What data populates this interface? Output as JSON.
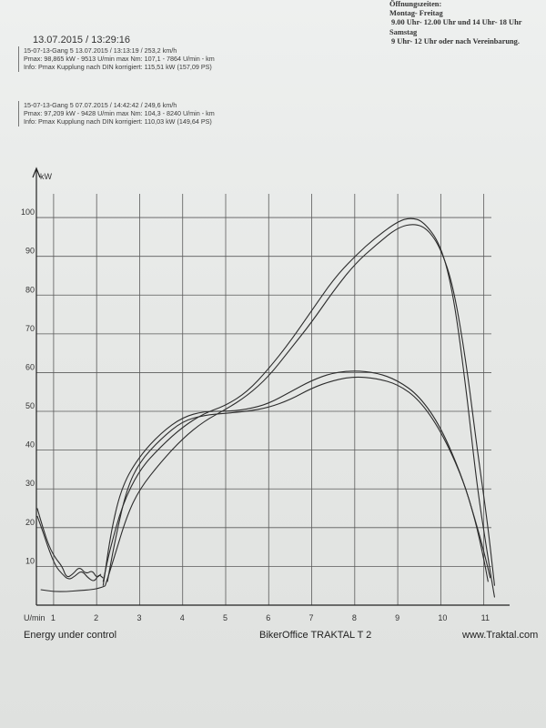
{
  "shop_hours": {
    "heading": "Öffnungszeiten:",
    "line1": "Montag- Freitag",
    "line2": "9.00 Uhr- 12.00 Uhr und 14 Uhr- 18 Uhr",
    "line3": "Samstag",
    "line4": "9 Uhr- 12 Uhr oder nach Vereinbarung."
  },
  "print_datetime": "13.07.2015  /  13:29:16",
  "runs": [
    {
      "line1": "15-07-13-Gang 5     13.07.2015   /  13:13:19  / 253,2 km/h",
      "line2": "Pmax: 98,865 kW - 9513 U/min      max Nm: 107,1 - 7864 U/min     - km",
      "line3": "Info: Pmax Kupplung nach DIN korrigiert: 115,51 kW (157,09 PS)"
    },
    {
      "line1": "15-07-13-Gang 5     07.07.2015   /  14:42:42  / 249,6 km/h",
      "line2": "Pmax: 97,209 kW - 9428 U/min      max Nm: 104,3 - 8240 U/min     - km",
      "line3": "Info: Pmax Kupplung nach DIN korrigiert: 110,03 kW (149,64 PS)"
    }
  ],
  "footer": {
    "left": "Energy  under control",
    "middle": "BikerOffice TRAKTAL  T 2",
    "right": "www.Traktal.com"
  },
  "chart_data": {
    "type": "line",
    "ylabel": "kW",
    "xlabel": "U/min",
    "x_ticks": [
      "1",
      "2",
      "3",
      "4",
      "5",
      "6",
      "7",
      "8",
      "9",
      "10",
      "11"
    ],
    "y_ticks": [
      "10",
      "20",
      "30",
      "40",
      "50",
      "60",
      "70",
      "80",
      "90",
      "100"
    ],
    "xlim": [
      0.6,
      11.6
    ],
    "ylim": [
      0,
      108
    ],
    "grid": true,
    "series": [
      {
        "values": [
          [
            2.15,
            6
          ],
          [
            2.3,
            14
          ],
          [
            2.6,
            26
          ],
          [
            3,
            35
          ],
          [
            3.5,
            41
          ],
          [
            4,
            46
          ],
          [
            4.5,
            49.5
          ],
          [
            5,
            51.5
          ],
          [
            5.5,
            55
          ],
          [
            6,
            61
          ],
          [
            6.5,
            68
          ],
          [
            7,
            76
          ],
          [
            7.5,
            84
          ],
          [
            8,
            90
          ],
          [
            8.5,
            95
          ],
          [
            9,
            99
          ],
          [
            9.3,
            100
          ],
          [
            9.6,
            99
          ],
          [
            10,
            93
          ],
          [
            10.3,
            80
          ],
          [
            10.6,
            55
          ],
          [
            10.85,
            30
          ],
          [
            11.1,
            12
          ],
          [
            11.25,
            2
          ]
        ]
      },
      {
        "values": [
          [
            2.2,
            5
          ],
          [
            2.4,
            12
          ],
          [
            2.7,
            23
          ],
          [
            3,
            30
          ],
          [
            3.5,
            37
          ],
          [
            4,
            43
          ],
          [
            4.5,
            47.5
          ],
          [
            5,
            50.5
          ],
          [
            5.5,
            54
          ],
          [
            6,
            59
          ],
          [
            6.5,
            66
          ],
          [
            7,
            73
          ],
          [
            7.5,
            81
          ],
          [
            8,
            88
          ],
          [
            8.5,
            93
          ],
          [
            9,
            97.5
          ],
          [
            9.4,
            98.5
          ],
          [
            9.7,
            97
          ],
          [
            10,
            92
          ],
          [
            10.3,
            82
          ],
          [
            10.6,
            62
          ],
          [
            10.85,
            40
          ],
          [
            11.1,
            20
          ],
          [
            11.25,
            5
          ]
        ]
      },
      {
        "values": [
          [
            2.15,
            5
          ],
          [
            2.35,
            20
          ],
          [
            2.6,
            31
          ],
          [
            3,
            38.5
          ],
          [
            3.5,
            44.5
          ],
          [
            4,
            48.5
          ],
          [
            4.5,
            50
          ],
          [
            5,
            50
          ],
          [
            5.5,
            50.5
          ],
          [
            6,
            52
          ],
          [
            6.5,
            55
          ],
          [
            7,
            58
          ],
          [
            7.5,
            60
          ],
          [
            8,
            60.5
          ],
          [
            8.5,
            60
          ],
          [
            9,
            58
          ],
          [
            9.5,
            54
          ],
          [
            10,
            46
          ],
          [
            10.5,
            33
          ],
          [
            10.8,
            22
          ],
          [
            11,
            12
          ],
          [
            11.1,
            6
          ]
        ]
      },
      {
        "values": [
          [
            2.25,
            6
          ],
          [
            2.45,
            18
          ],
          [
            2.7,
            30
          ],
          [
            3,
            37
          ],
          [
            3.5,
            43
          ],
          [
            4,
            47.5
          ],
          [
            4.5,
            49
          ],
          [
            5,
            49.5
          ],
          [
            5.5,
            50
          ],
          [
            6,
            51
          ],
          [
            6.5,
            53
          ],
          [
            7,
            56
          ],
          [
            7.5,
            58
          ],
          [
            8,
            59
          ],
          [
            8.5,
            58.5
          ],
          [
            9,
            57
          ],
          [
            9.5,
            53
          ],
          [
            10,
            45
          ],
          [
            10.5,
            33
          ],
          [
            10.8,
            22
          ],
          [
            11,
            14
          ],
          [
            11.15,
            7
          ]
        ]
      },
      {
        "values": [
          [
            0.62,
            23
          ],
          [
            0.75,
            19
          ],
          [
            0.9,
            14
          ],
          [
            1.05,
            10
          ],
          [
            1.2,
            8
          ],
          [
            1.35,
            6.5
          ],
          [
            1.5,
            7.5
          ],
          [
            1.65,
            9
          ],
          [
            1.8,
            7
          ],
          [
            1.95,
            6
          ],
          [
            2.05,
            8
          ],
          [
            2.15,
            7
          ]
        ]
      },
      {
        "values": [
          [
            0.62,
            25
          ],
          [
            0.75,
            20
          ],
          [
            0.9,
            15
          ],
          [
            1.05,
            12
          ],
          [
            1.2,
            10
          ],
          [
            1.3,
            7
          ],
          [
            1.45,
            8
          ],
          [
            1.6,
            10
          ],
          [
            1.75,
            8
          ],
          [
            1.9,
            9
          ],
          [
            2.0,
            7
          ],
          [
            2.1,
            8
          ]
        ]
      },
      {
        "values": [
          [
            0.7,
            4
          ],
          [
            1,
            3.5
          ],
          [
            1.3,
            3.5
          ],
          [
            1.6,
            3.8
          ],
          [
            1.9,
            4
          ],
          [
            2.1,
            4.5
          ],
          [
            2.2,
            5
          ]
        ]
      }
    ]
  }
}
